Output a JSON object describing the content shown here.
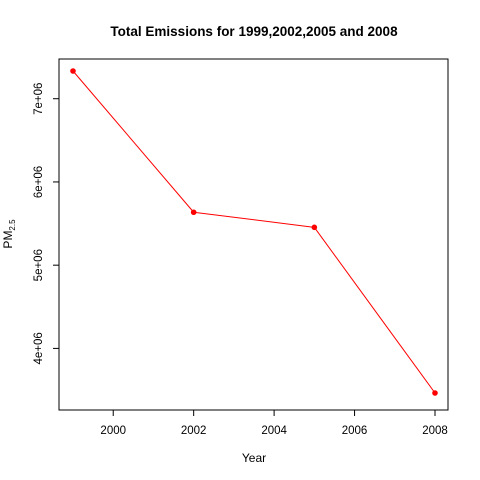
{
  "chart_data": {
    "type": "line",
    "title": "Total Emissions for 1999,2002,2005 and 2008",
    "xlabel": "Year",
    "ylabel_main": "PM",
    "ylabel_sub": "2.5",
    "x": [
      1999,
      2002,
      2005,
      2008
    ],
    "y": [
      7332967,
      5635780,
      5454703,
      3464206
    ],
    "xlim": [
      1999,
      2008
    ],
    "ylim": [
      3464206,
      7332967
    ],
    "xticks": [
      2000,
      2002,
      2004,
      2006,
      2008
    ],
    "xtick_labels": [
      "2000",
      "2002",
      "2004",
      "2006",
      "2008"
    ],
    "yticks": [
      4000000,
      5000000,
      6000000,
      7000000
    ],
    "ytick_labels": [
      "4e+06",
      "5e+06",
      "6e+06",
      "7e+06"
    ],
    "line_color": "#ff0000",
    "point_color": "#ff0000",
    "grid": false,
    "legend": "none"
  }
}
